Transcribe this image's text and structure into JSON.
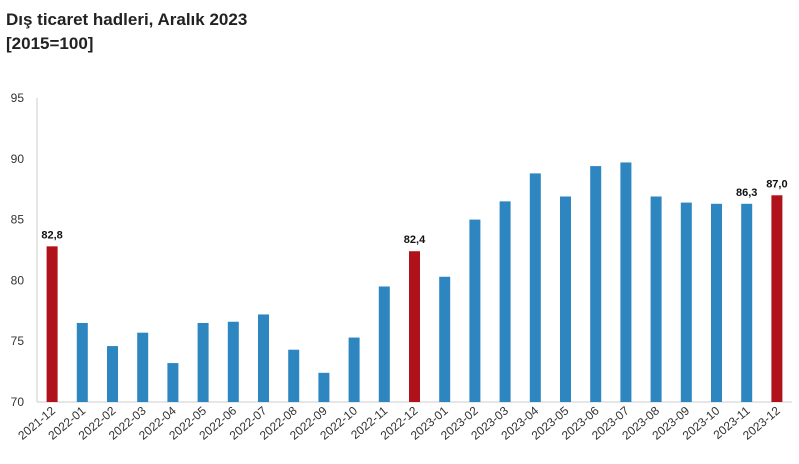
{
  "chart_data": {
    "type": "bar",
    "title": "Dış ticaret hadleri, Aralık 2023",
    "subtitle": "[2015=100]",
    "xlabel": "",
    "ylabel": "",
    "ylim": [
      70,
      95
    ],
    "yticks": [
      70,
      75,
      80,
      85,
      90,
      95
    ],
    "grid": false,
    "legend": "none",
    "colors": {
      "default": "#2e86c1",
      "highlight": "#b0121b"
    },
    "categories": [
      "2021-12",
      "2022-01",
      "2022-02",
      "2022-03",
      "2022-04",
      "2022-05",
      "2022-06",
      "2022-07",
      "2022-08",
      "2022-09",
      "2022-10",
      "2022-11",
      "2022-12",
      "2023-01",
      "2023-02",
      "2023-03",
      "2023-04",
      "2023-05",
      "2023-06",
      "2023-07",
      "2023-08",
      "2023-09",
      "2023-10",
      "2023-11",
      "2023-12"
    ],
    "values": [
      82.8,
      76.5,
      74.6,
      75.7,
      73.2,
      76.5,
      76.6,
      77.2,
      74.3,
      72.4,
      75.3,
      79.5,
      82.4,
      80.3,
      85.0,
      86.5,
      88.8,
      86.9,
      89.4,
      89.7,
      86.9,
      86.4,
      86.3,
      86.3,
      87.0
    ],
    "highlighted": [
      0,
      12,
      24
    ],
    "data_labels": [
      {
        "index": 0,
        "text": "82,8"
      },
      {
        "index": 12,
        "text": "82,4"
      },
      {
        "index": 23,
        "text": "86,3"
      },
      {
        "index": 24,
        "text": "87,0"
      }
    ]
  }
}
